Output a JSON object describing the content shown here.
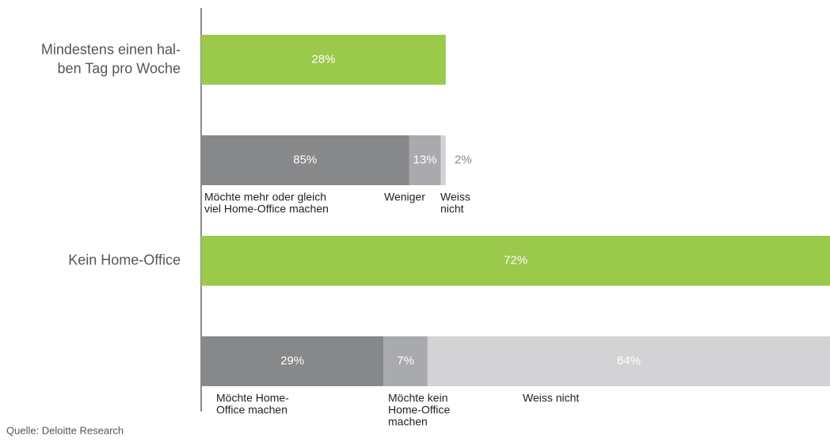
{
  "chart_data": {
    "type": "bar",
    "categories": [
      [
        "Mindestens einen hal-",
        "ben Tag pro Woche"
      ],
      [
        "Kein Home-Office"
      ]
    ],
    "values": [
      28,
      72
    ],
    "value_labels": [
      "28%",
      "72%"
    ],
    "color": "#9bc94b",
    "breakdowns": [
      {
        "values": [
          85,
          13,
          2
        ],
        "value_labels": [
          "85%",
          "13%",
          "2%"
        ],
        "labels": [
          [
            "Möchte mehr oder gleich",
            "viel Home-Office machen"
          ],
          [
            "Weniger"
          ],
          [
            "Weiss",
            "nicht"
          ]
        ],
        "colors": [
          "#87888a",
          "#a9aaad",
          "#d3d3d5"
        ]
      },
      {
        "values": [
          29,
          7,
          64
        ],
        "value_labels": [
          "29%",
          "7%",
          "64%"
        ],
        "labels": [
          [
            "Möchte Home-",
            "Office machen"
          ],
          [
            "Möchte kein",
            "Home-Office",
            "machen"
          ],
          [
            "Weiss nicht"
          ]
        ],
        "colors": [
          "#87888a",
          "#a9aaad",
          "#d3d3d5"
        ]
      }
    ],
    "source": "Quelle: Deloitte Research"
  }
}
